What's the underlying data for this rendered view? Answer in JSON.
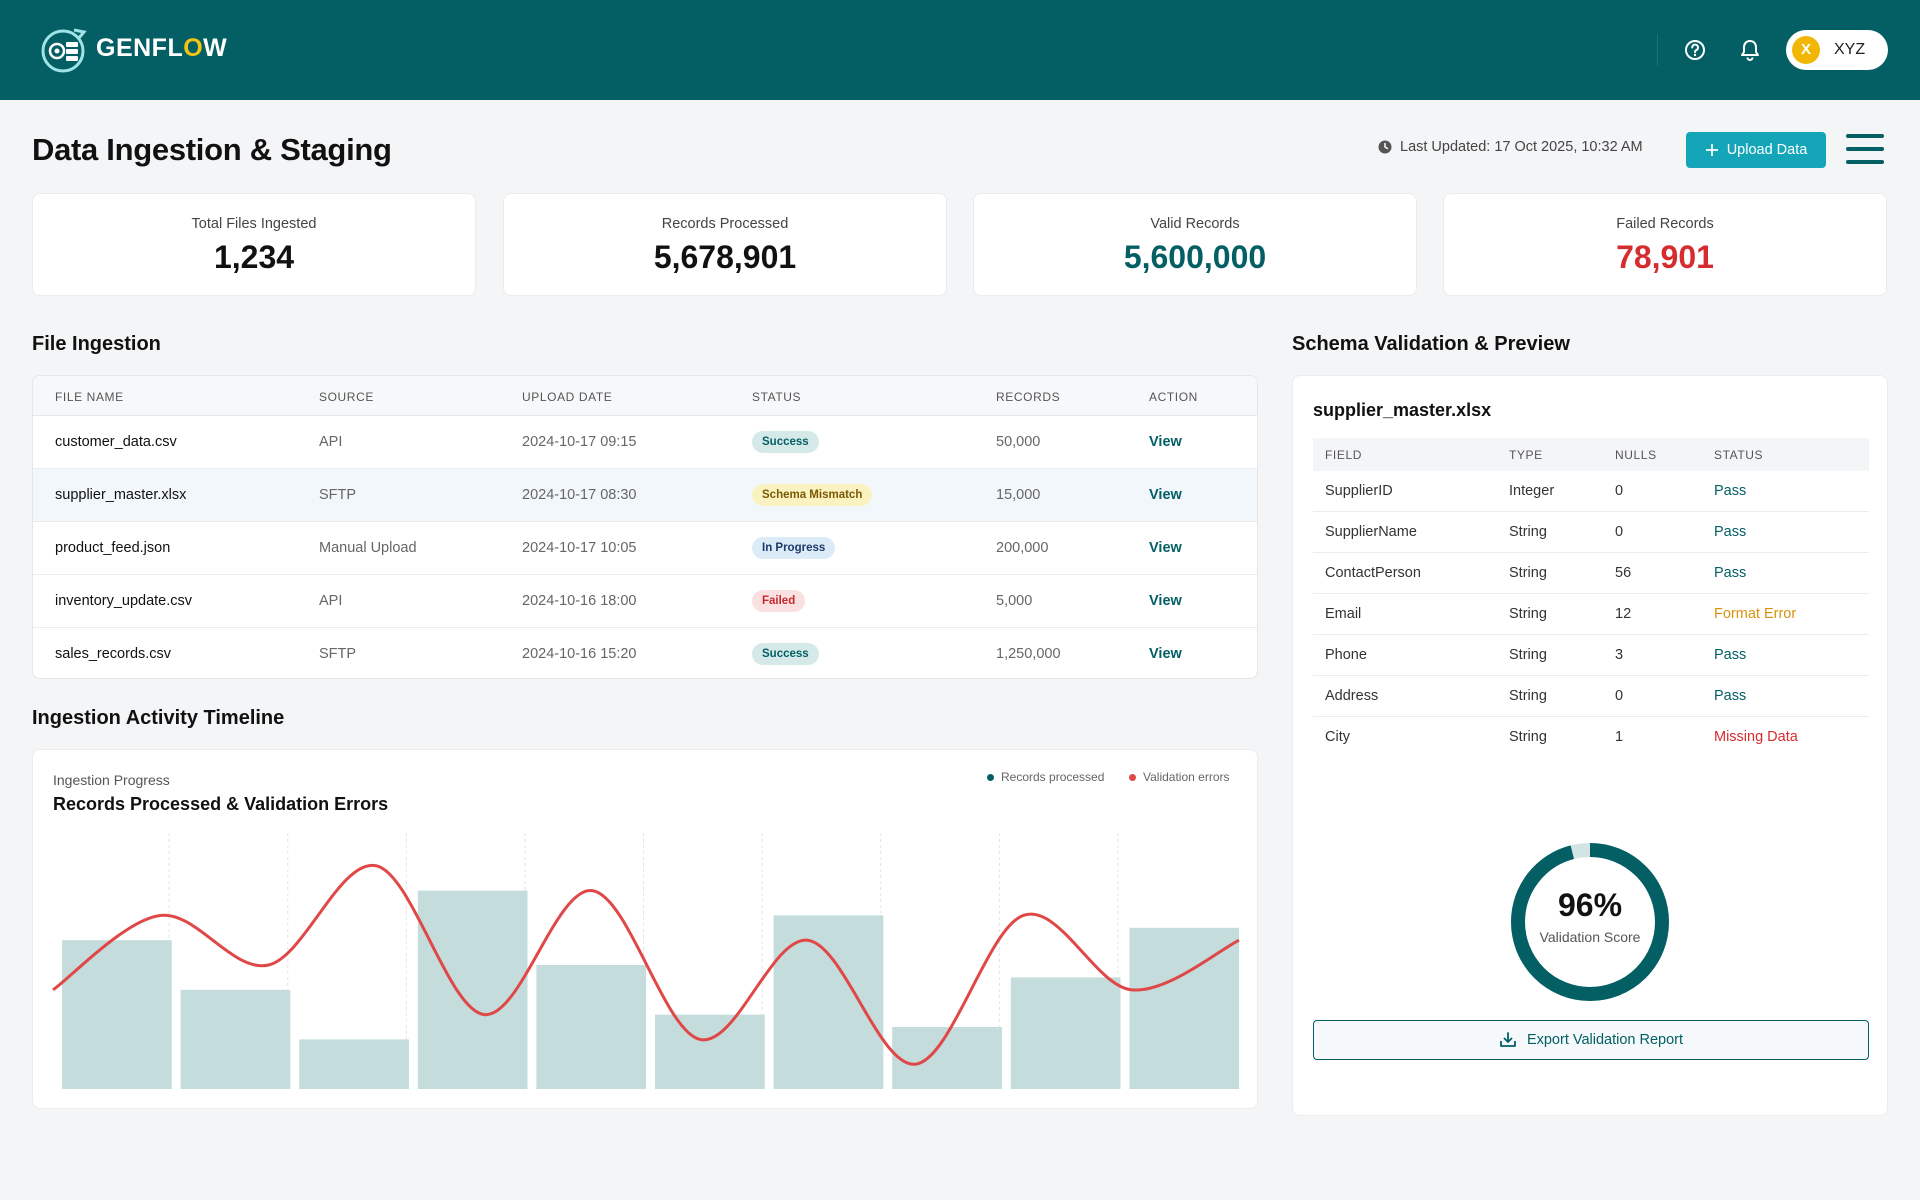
{
  "header": {
    "brand_prefix": "GENFL",
    "brand_o": "O",
    "brand_suffix": "W",
    "user_initial": "X",
    "user_name": "XYZ",
    "colors": {
      "bar": "#035f64",
      "accent": "#f4c414"
    },
    "icons": [
      "help-icon",
      "bell-icon"
    ]
  },
  "page": {
    "title": "Data Ingestion & Staging",
    "last_updated": "Last Updated: 17 Oct 2025, 10:32 AM",
    "upload_label": "Upload Data"
  },
  "stats": [
    {
      "label": "Total Files Ingested",
      "value": "1,234",
      "color": "#111111"
    },
    {
      "label": "Records Processed",
      "value": "5,678,901",
      "color": "#111111"
    },
    {
      "label": "Valid Records",
      "value": "5,600,000",
      "color": "#035f64"
    },
    {
      "label": "Failed Records",
      "value": "78,901",
      "color": "#d62b2f"
    }
  ],
  "file_ingestion": {
    "title": "File Ingestion",
    "columns": [
      "FILE NAME",
      "SOURCE",
      "UPLOAD DATE",
      "STATUS",
      "RECORDS",
      "ACTION"
    ],
    "rows": [
      {
        "name": "customer_data.csv",
        "source": "API",
        "date": "2024-10-17 09:15",
        "status": "Success",
        "records": "50,000",
        "action": "View"
      },
      {
        "name": "supplier_master.xlsx",
        "source": "SFTP",
        "date": "2024-10-17 08:30",
        "status": "Schema Mismatch",
        "records": "15,000",
        "action": "View"
      },
      {
        "name": "product_feed.json",
        "source": "Manual Upload",
        "date": "2024-10-17 10:05",
        "status": "In Progress",
        "records": "200,000",
        "action": "View"
      },
      {
        "name": "inventory_update.csv",
        "source": "API",
        "date": "2024-10-16 18:00",
        "status": "Failed",
        "records": "5,000",
        "action": "View"
      },
      {
        "name": "sales_records.csv",
        "source": "SFTP",
        "date": "2024-10-16 15:20",
        "status": "Success",
        "records": "1,250,000",
        "action": "View"
      }
    ]
  },
  "timeline": {
    "title": "Ingestion Activity Timeline",
    "subtitle": "Ingestion Progress",
    "chart_title": "Records Processed & Validation Errors",
    "legend_records": "Records processed",
    "legend_errors": "Validation errors"
  },
  "chart_data": {
    "type": "bar",
    "title": "Records Processed & Validation Errors",
    "legend_placement": "top-right",
    "grid": true,
    "series": [
      {
        "name": "Records processed",
        "type": "bar",
        "color": "#c5dcdc",
        "values": [
          60,
          40,
          20,
          80,
          50,
          30,
          70,
          25,
          45,
          65
        ]
      },
      {
        "name": "Validation errors",
        "type": "line",
        "color": "#e04848",
        "values": [
          40,
          70,
          50,
          90,
          30,
          80,
          20,
          60,
          10,
          70,
          40,
          60
        ]
      }
    ],
    "ylim": [
      0,
      100
    ]
  },
  "schema": {
    "title": "Schema Validation & Preview",
    "file": "supplier_master.xlsx",
    "columns": [
      "FIELD",
      "TYPE",
      "NULLS",
      "STATUS"
    ],
    "rows": [
      {
        "field": "SupplierID",
        "type": "Integer",
        "nulls": "0",
        "status": "Pass"
      },
      {
        "field": "SupplierName",
        "type": "String",
        "nulls": "0",
        "status": "Pass"
      },
      {
        "field": "ContactPerson",
        "type": "String",
        "nulls": "56",
        "status": "Pass"
      },
      {
        "field": "Email",
        "type": "String",
        "nulls": "12",
        "status": "Format Error"
      },
      {
        "field": "Phone",
        "type": "String",
        "nulls": "3",
        "status": "Pass"
      },
      {
        "field": "Address",
        "type": "String",
        "nulls": "0",
        "status": "Pass"
      },
      {
        "field": "City",
        "type": "String",
        "nulls": "1",
        "status": "Missing Data"
      }
    ],
    "score_value": "96%",
    "score_fraction": 0.96,
    "score_label": "Validation Score",
    "export_label": "Export Validation Report"
  }
}
